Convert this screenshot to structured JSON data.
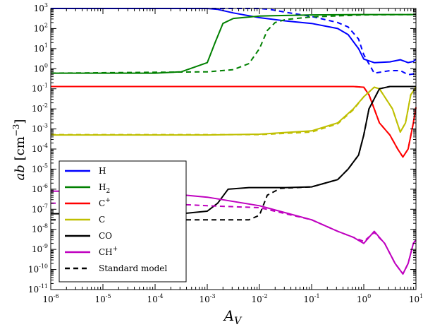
{
  "chart_data": {
    "type": "line",
    "xlabel": "A_V",
    "ylabel": "ab [cm^-3]",
    "xscale": "log",
    "yscale": "log",
    "xlim": [
      1e-06,
      10
    ],
    "ylim": [
      1e-11,
      1000
    ],
    "x_ticks": [
      "10-6",
      "10-5",
      "10-4",
      "10-3",
      "10-2",
      "10-1",
      "100",
      "101"
    ],
    "y_ticks": [
      "10-11",
      "10-10",
      "10-9",
      "10-8",
      "10-7",
      "10-6",
      "10-5",
      "10-4",
      "10-3",
      "10-2",
      "10-1",
      "100",
      "101",
      "102",
      "103"
    ],
    "legend": {
      "location": "lower-left",
      "entries": [
        {
          "label": "H",
          "sub": "",
          "sup": "",
          "color": "#0000ff",
          "style": "solid"
        },
        {
          "label": "H",
          "sub": "2",
          "sup": "",
          "color": "#008000",
          "style": "solid"
        },
        {
          "label": "C",
          "sub": "",
          "sup": "+",
          "color": "#ff0000",
          "style": "solid"
        },
        {
          "label": "C",
          "sub": "",
          "sup": "",
          "color": "#bfbf00",
          "style": "solid"
        },
        {
          "label": "CO",
          "sub": "",
          "sup": "",
          "color": "#000000",
          "style": "solid"
        },
        {
          "label": "CH",
          "sub": "",
          "sup": "+",
          "color": "#bf00bf",
          "style": "solid"
        },
        {
          "label": "Standard model",
          "sub": "",
          "sup": "",
          "color": "#000000",
          "style": "dashed"
        }
      ]
    },
    "series": [
      {
        "name": "H",
        "color": "#0000ff",
        "style": "solid",
        "points": [
          [
            -6,
            1000
          ],
          [
            -3,
            1000
          ],
          [
            -2.8,
            900
          ],
          [
            -2.5,
            600
          ],
          [
            -2,
            350
          ],
          [
            -1.5,
            240
          ],
          [
            -1,
            180
          ],
          [
            -0.5,
            100
          ],
          [
            -0.3,
            50
          ],
          [
            -0.1,
            10
          ],
          [
            0,
            3
          ],
          [
            0.2,
            2
          ],
          [
            0.5,
            2.2
          ],
          [
            0.7,
            2.8
          ],
          [
            0.85,
            2
          ],
          [
            0.95,
            2.3
          ],
          [
            1,
            3
          ]
        ]
      },
      {
        "name": "H standard",
        "color": "#0000ff",
        "style": "dashed",
        "points": [
          [
            -6,
            1000
          ],
          [
            -2,
            1000
          ],
          [
            -1.8,
            900
          ],
          [
            -1.5,
            650
          ],
          [
            -1,
            400
          ],
          [
            -0.5,
            200
          ],
          [
            -0.3,
            120
          ],
          [
            -0.1,
            30
          ],
          [
            0,
            5
          ],
          [
            0.2,
            0.6
          ],
          [
            0.5,
            0.8
          ],
          [
            0.7,
            0.8
          ],
          [
            0.85,
            0.5
          ],
          [
            0.95,
            0.55
          ],
          [
            1,
            0.5
          ]
        ]
      },
      {
        "name": "H2",
        "color": "#008000",
        "style": "solid",
        "points": [
          [
            -6,
            0.6
          ],
          [
            -4,
            0.6
          ],
          [
            -3.5,
            0.7
          ],
          [
            -3,
            2
          ],
          [
            -2.85,
            20
          ],
          [
            -2.7,
            180
          ],
          [
            -2.5,
            320
          ],
          [
            -2,
            420
          ],
          [
            -1,
            480
          ],
          [
            0,
            500
          ],
          [
            1,
            500
          ]
        ]
      },
      {
        "name": "H2 standard",
        "color": "#008000",
        "style": "dashed",
        "points": [
          [
            -6,
            0.6
          ],
          [
            -3,
            0.7
          ],
          [
            -2.5,
            0.9
          ],
          [
            -2.2,
            1.8
          ],
          [
            -2,
            10
          ],
          [
            -1.85,
            80
          ],
          [
            -1.7,
            200
          ],
          [
            -1.5,
            280
          ],
          [
            -1,
            380
          ],
          [
            0,
            480
          ],
          [
            1,
            500
          ]
        ]
      },
      {
        "name": "C+",
        "color": "#ff0000",
        "style": "solid",
        "points": [
          [
            -6,
            0.13
          ],
          [
            -1,
            0.13
          ],
          [
            -0.2,
            0.13
          ],
          [
            0,
            0.12
          ],
          [
            0.1,
            0.05
          ],
          [
            0.2,
            0.01
          ],
          [
            0.3,
            0.002
          ],
          [
            0.5,
            0.0005
          ],
          [
            0.65,
            0.0001
          ],
          [
            0.75,
            4e-05
          ],
          [
            0.85,
            0.0001
          ],
          [
            0.95,
            0.002
          ],
          [
            1,
            0.012
          ]
        ]
      },
      {
        "name": "C+ standard",
        "color": "#ff0000",
        "style": "dashed",
        "points": [
          [
            -6,
            0.13
          ],
          [
            -1,
            0.13
          ],
          [
            -0.2,
            0.13
          ],
          [
            0,
            0.12
          ],
          [
            0.1,
            0.05
          ],
          [
            0.2,
            0.01
          ],
          [
            0.3,
            0.002
          ],
          [
            0.5,
            0.0005
          ],
          [
            0.65,
            0.0001
          ],
          [
            0.75,
            4e-05
          ],
          [
            0.85,
            0.0001
          ],
          [
            0.95,
            0.002
          ],
          [
            1,
            0.012
          ]
        ]
      },
      {
        "name": "C",
        "color": "#bfbf00",
        "style": "solid",
        "points": [
          [
            -6,
            0.0005
          ],
          [
            -3,
            0.0005
          ],
          [
            -2,
            0.00055
          ],
          [
            -1,
            0.0008
          ],
          [
            -0.5,
            0.002
          ],
          [
            -0.2,
            0.01
          ],
          [
            0,
            0.04
          ],
          [
            0.2,
            0.12
          ],
          [
            0.3,
            0.1
          ],
          [
            0.55,
            0.01
          ],
          [
            0.7,
            0.0007
          ],
          [
            0.8,
            0.002
          ],
          [
            0.9,
            0.05
          ],
          [
            1,
            0.12
          ]
        ]
      },
      {
        "name": "C standard",
        "color": "#bfbf00",
        "style": "dashed",
        "points": [
          [
            -6,
            0.00052
          ],
          [
            -3,
            0.00052
          ],
          [
            -2,
            0.00052
          ],
          [
            -1,
            0.0007
          ],
          [
            -0.5,
            0.0018
          ],
          [
            -0.2,
            0.009
          ],
          [
            0,
            0.04
          ],
          [
            0.2,
            0.12
          ],
          [
            0.3,
            0.1
          ],
          [
            0.55,
            0.01
          ],
          [
            0.7,
            0.0007
          ],
          [
            0.8,
            0.002
          ],
          [
            0.9,
            0.05
          ],
          [
            1,
            0.12
          ]
        ]
      },
      {
        "name": "CO",
        "color": "#000000",
        "style": "solid",
        "points": [
          [
            -6,
            6e-08
          ],
          [
            -3.5,
            6e-08
          ],
          [
            -3,
            8e-08
          ],
          [
            -2.8,
            2e-07
          ],
          [
            -2.6,
            1e-06
          ],
          [
            -2.2,
            1.2e-06
          ],
          [
            -1.5,
            1.2e-06
          ],
          [
            -1,
            1.3e-06
          ],
          [
            -0.5,
            3e-06
          ],
          [
            -0.3,
            1e-05
          ],
          [
            -0.1,
            5e-05
          ],
          [
            0,
            0.0005
          ],
          [
            0.1,
            0.01
          ],
          [
            0.3,
            0.1
          ],
          [
            0.5,
            0.13
          ],
          [
            0.8,
            0.13
          ],
          [
            1,
            0.13
          ]
        ]
      },
      {
        "name": "CO standard",
        "color": "#000000",
        "style": "dashed",
        "points": [
          [
            -6,
            3e-08
          ],
          [
            -3,
            3e-08
          ],
          [
            -2.2,
            3e-08
          ],
          [
            -2,
            5e-08
          ],
          [
            -1.85,
            5e-07
          ],
          [
            -1.6,
            1.1e-06
          ],
          [
            -1,
            1.3e-06
          ],
          [
            -0.5,
            3e-06
          ],
          [
            -0.3,
            1e-05
          ],
          [
            -0.1,
            5e-05
          ],
          [
            0,
            0.0005
          ],
          [
            0.1,
            0.01
          ],
          [
            0.3,
            0.1
          ],
          [
            0.5,
            0.13
          ],
          [
            0.8,
            0.13
          ],
          [
            1,
            0.13
          ]
        ]
      },
      {
        "name": "CH+",
        "color": "#bf00bf",
        "style": "solid",
        "points": [
          [
            -6,
            8e-07
          ],
          [
            -4,
            7e-07
          ],
          [
            -3,
            4e-07
          ],
          [
            -2,
            1.5e-07
          ],
          [
            -1,
            3e-08
          ],
          [
            -0.5,
            8e-09
          ],
          [
            -0.2,
            4e-09
          ],
          [
            0,
            2e-09
          ],
          [
            0.2,
            8e-09
          ],
          [
            0.4,
            2e-09
          ],
          [
            0.6,
            2e-10
          ],
          [
            0.75,
            6e-11
          ],
          [
            0.85,
            2e-10
          ],
          [
            0.95,
            2e-09
          ],
          [
            1,
            3e-09
          ]
        ]
      },
      {
        "name": "CH+ standard",
        "color": "#bf00bf",
        "style": "dashed",
        "points": [
          [
            -6,
            2e-07
          ],
          [
            -4,
            2e-07
          ],
          [
            -3,
            1.5e-07
          ],
          [
            -2,
            1.2e-07
          ],
          [
            -1,
            3e-08
          ],
          [
            -0.5,
            8e-09
          ],
          [
            -0.2,
            4e-09
          ],
          [
            0,
            2.5e-09
          ],
          [
            0.2,
            7e-09
          ],
          [
            0.4,
            2e-09
          ],
          [
            0.6,
            2e-10
          ],
          [
            0.75,
            6e-11
          ],
          [
            0.85,
            2e-10
          ],
          [
            0.95,
            2e-09
          ],
          [
            1,
            3e-09
          ]
        ]
      }
    ]
  }
}
